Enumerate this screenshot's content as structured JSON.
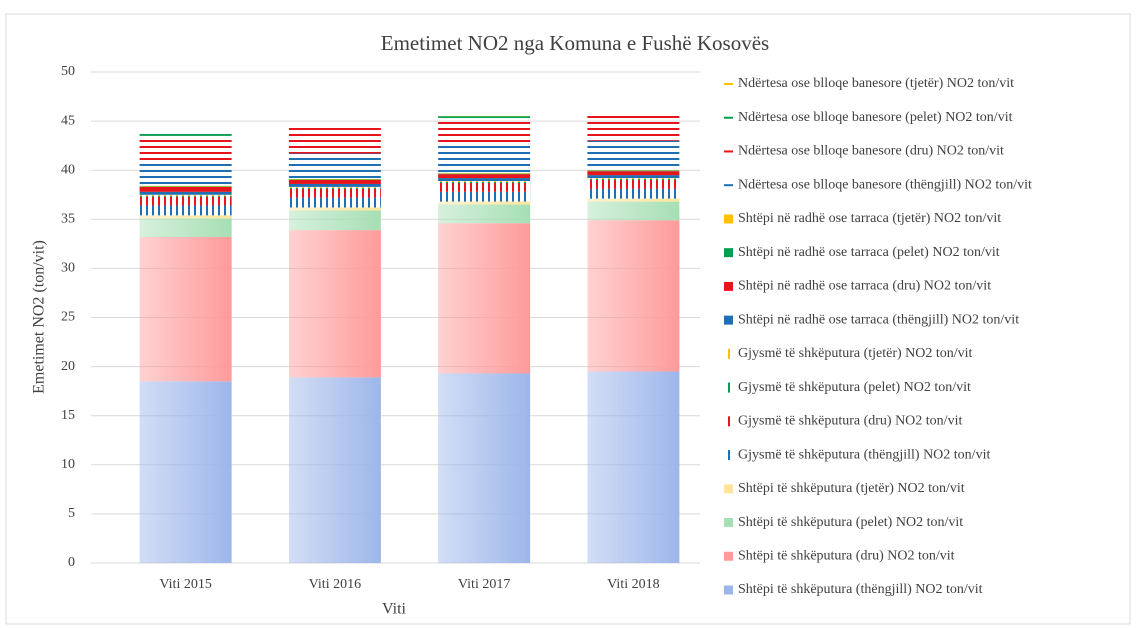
{
  "chart_data": {
    "type": "stacked_bar",
    "title": "Emetimet NO2 nga Komuna e Fushë Kosovës",
    "x_label": "Viti",
    "y_label": "Emetimet NO2 (ton/vit)",
    "categories": [
      "Viti 2015",
      "Viti 2016",
      "Viti 2017",
      "Viti 2018"
    ],
    "ylim": [
      0,
      50
    ],
    "yticks": [
      0,
      5,
      10,
      15,
      20,
      25,
      30,
      35,
      40,
      45,
      50
    ],
    "grid": true,
    "legend": "right",
    "series": [
      {
        "name": "Shtëpi të shkëputura (thëngjill) NO2 ton/vit",
        "color": "#9db6ea",
        "style": "gradient",
        "values": [
          18.5,
          18.9,
          19.3,
          19.5
        ]
      },
      {
        "name": "Shtëpi të shkëputura (dru) NO2 ton/vit",
        "color": "#ff9a9a",
        "style": "gradient",
        "values": [
          14.7,
          15.0,
          15.3,
          15.4
        ]
      },
      {
        "name": "Shtëpi të shkëputura (pelet) NO2 ton/vit",
        "color": "#a6dfb4",
        "style": "gradient",
        "values": [
          1.9,
          2.0,
          1.9,
          1.9
        ]
      },
      {
        "name": "Shtëpi të shkëputura (tjetër) NO2 ton/vit",
        "color": "#ffe49a",
        "style": "gradient",
        "values": [
          0.3,
          0.3,
          0.3,
          0.3
        ]
      },
      {
        "name": "Gjysmë të shkëputura (thëngjill) NO2 ton/vit",
        "color": "#1f6fb5",
        "style": "vstripe",
        "values": [
          1.0,
          1.0,
          1.0,
          1.0
        ]
      },
      {
        "name": "Gjysmë të shkëputura (dru) NO2 ton/vit",
        "color": "#e8141c",
        "style": "vstripe",
        "values": [
          0.9,
          0.9,
          0.9,
          0.9
        ]
      },
      {
        "name": "Gjysmë të shkëputura (pelet) NO2 ton/vit",
        "color": "#00a050",
        "style": "vstripe",
        "values": [
          0.1,
          0.1,
          0.1,
          0.1
        ]
      },
      {
        "name": "Gjysmë të shkëputura (tjetër) NO2 ton/vit",
        "color": "#ffc000",
        "style": "vstripe",
        "values": [
          0.1,
          0.1,
          0.1,
          0.1
        ]
      },
      {
        "name": "Shtëpi në radhë ose tarraca (thëngjill) NO2 ton/vit",
        "color": "#1f6fb5",
        "style": "solid",
        "values": [
          0.3,
          0.3,
          0.3,
          0.3
        ]
      },
      {
        "name": "Shtëpi në radhë ose tarraca (dru) NO2 ton/vit",
        "color": "#e8141c",
        "style": "solid",
        "values": [
          0.5,
          0.4,
          0.4,
          0.4
        ]
      },
      {
        "name": "Shtëpi në radhë ose tarraca (pelet) NO2 ton/vit",
        "color": "#00a050",
        "style": "solid",
        "values": [
          0.05,
          0.05,
          0.05,
          0.05
        ]
      },
      {
        "name": "Shtëpi në radhë ose tarraca (tjetër) NO2 ton/vit",
        "color": "#ffc000",
        "style": "solid",
        "values": [
          0.05,
          0.05,
          0.05,
          0.05
        ]
      },
      {
        "name": "Ndërtesa ose blloqe banesore (thëngjill) NO2 ton/vit",
        "color": "#1f6fb5",
        "style": "hstripe",
        "values": [
          2.5,
          2.6,
          3.0,
          3.0
        ]
      },
      {
        "name": "Ndërtesa ose blloqe banesore (dru) NO2 ton/vit",
        "color": "#e8141c",
        "style": "hstripe",
        "values": [
          2.6,
          2.6,
          2.6,
          2.6
        ]
      },
      {
        "name": "Ndërtesa ose blloqe banesore (pelet) NO2 ton/vit",
        "color": "#00a050",
        "style": "hstripe",
        "values": [
          0.2,
          0.1,
          0.2,
          0.05
        ]
      },
      {
        "name": "Ndërtesa ose blloqe banesore (tjetër) NO2 ton/vit",
        "color": "#ffc000",
        "style": "hstripe",
        "values": [
          0.1,
          0.1,
          0.1,
          0.05
        ]
      }
    ]
  }
}
